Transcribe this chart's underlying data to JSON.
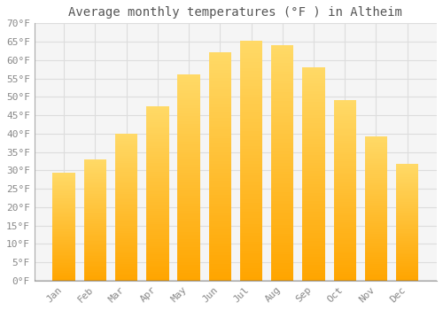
{
  "title": "Average monthly temperatures (°F ) in Altheim",
  "months": [
    "Jan",
    "Feb",
    "Mar",
    "Apr",
    "May",
    "Jun",
    "Jul",
    "Aug",
    "Sep",
    "Oct",
    "Nov",
    "Dec"
  ],
  "values": [
    29.3,
    33.0,
    40.0,
    47.3,
    56.0,
    62.0,
    65.2,
    64.0,
    58.0,
    49.0,
    39.3,
    31.7
  ],
  "bar_color_bottom": "#FFA500",
  "bar_color_top": "#FFD966",
  "ylim": [
    0,
    70
  ],
  "ytick_step": 5,
  "background_color": "#ffffff",
  "plot_bg_color": "#f5f5f5",
  "grid_color": "#dddddd",
  "title_fontsize": 10,
  "tick_fontsize": 8,
  "tick_color": "#888888",
  "title_color": "#555555"
}
